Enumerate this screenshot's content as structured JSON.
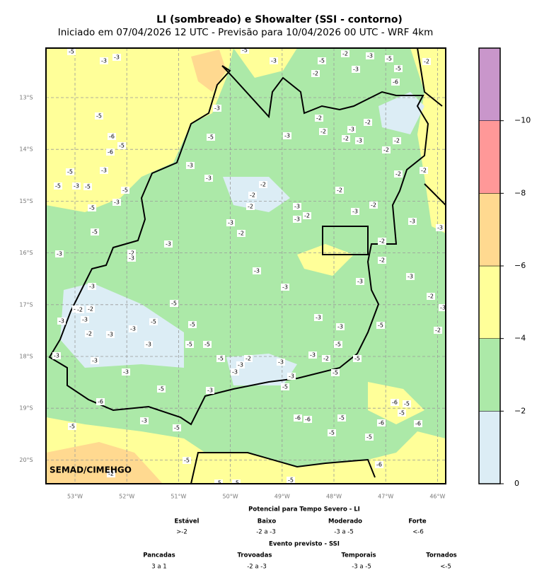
{
  "header": {
    "title": "LI (sombreado) e Showalter (SSI - contorno)",
    "subtitle": "Iniciado em 07/04/2026 12 UTC - Previsão para 10/04/2026 00 UTC - WRF 4km"
  },
  "map": {
    "credit": "SEMAD/CIMEHGO",
    "lat_labels": [
      "13°S",
      "14°S",
      "15°S",
      "16°S",
      "17°S",
      "18°S",
      "19°S",
      "20°S"
    ],
    "lon_labels": [
      "53°W",
      "52°W",
      "51°W",
      "50°W",
      "49°W",
      "48°W",
      "47°W",
      "46°W"
    ],
    "contour_labels": [
      -5,
      -3,
      -3,
      -5,
      -3,
      -5,
      -2,
      -3,
      -5,
      -3,
      -2,
      -5,
      -2,
      -6,
      -5,
      -6,
      -5,
      -6,
      -5,
      -3,
      -3,
      -2,
      -2,
      -3,
      -2,
      -2,
      -3,
      -2,
      -2,
      -3,
      -3,
      -5,
      -5,
      -3,
      -5,
      -3,
      -2,
      -2,
      -2,
      -2,
      -3,
      -2,
      -3,
      -2,
      -3,
      -5,
      -5,
      -3,
      -2,
      -2,
      -3,
      -3,
      -5,
      -3,
      -2,
      -3,
      -3,
      -2,
      -3,
      -2,
      -2,
      -3,
      -3,
      -3,
      -3,
      -3,
      -2,
      -2,
      -2,
      -5,
      -2,
      -3,
      -3,
      -3,
      -5,
      -3,
      -3,
      -5,
      -2,
      -5,
      -2,
      -3,
      -3,
      -3,
      -5,
      -5,
      -5,
      -3,
      -3,
      -5,
      -2,
      -3,
      -2,
      -5,
      -3,
      -3,
      -3,
      -3,
      -3,
      -5,
      -5,
      -5,
      -3,
      -6,
      -6,
      -5,
      -5,
      -6,
      -6,
      -5,
      -6,
      -6,
      -5,
      -3,
      -5,
      -5,
      -5,
      -5,
      -6,
      -5,
      -5,
      -5,
      -2
    ]
  },
  "colorbar": {
    "lim": [
      0,
      -12
    ],
    "ticks": [
      0,
      {
        "value": -2,
        "label": "−2"
      },
      {
        "value": -4,
        "label": "−4"
      },
      {
        "value": -6,
        "label": "−6"
      },
      {
        "value": -8,
        "label": "−8"
      },
      {
        "value": -10,
        "label": "−10"
      }
    ],
    "colors": [
      "#dcedf5",
      "#ace9a8",
      "#ffff99",
      "#ffd990",
      "#ff9898",
      "#c996cb"
    ]
  },
  "legend": {
    "li_title": "Potencial para Tempo Severo - LI",
    "li_classes": [
      "Estável",
      "Baixo",
      "Moderado",
      "Forte"
    ],
    "li_ranges": [
      ">-2",
      "-2 a -3",
      "-3 a -5",
      "<-6"
    ],
    "ssi_title": "Evento previsto - SSI",
    "ssi_classes": [
      "Pancadas",
      "Trovoadas",
      "Temporais",
      "Tornados"
    ],
    "ssi_ranges": [
      "3 a 1",
      "-2 a -3",
      "-3 a -5",
      "<-5"
    ]
  }
}
